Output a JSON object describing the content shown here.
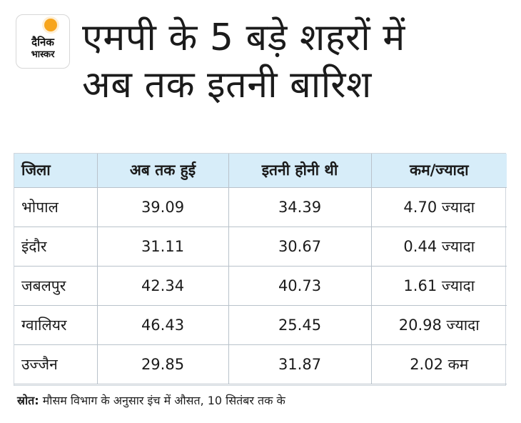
{
  "brand": {
    "line1": "दैनिक",
    "line2": "भास्कर"
  },
  "title": {
    "line1": "एमपी के 5 बड़े शहरों में",
    "line2": "अब तक इतनी बारिश"
  },
  "chart_data": {
    "type": "table",
    "title": "एमपी के 5 बड़े शहरों में अब तक इतनी बारिश",
    "columns": [
      "जिला",
      "अब तक हुई",
      "इतनी होनी थी",
      "कम/ज्यादा"
    ],
    "rows": [
      {
        "district": "भोपाल",
        "actual": "39.09",
        "expected": "34.39",
        "difference": "4.70 ज्यादा"
      },
      {
        "district": "इंदौर",
        "actual": "31.11",
        "expected": "30.67",
        "difference": "0.44 ज्यादा"
      },
      {
        "district": "जबलपुर",
        "actual": "42.34",
        "expected": "40.73",
        "difference": "1.61 ज्यादा"
      },
      {
        "district": "ग्वालियर",
        "actual": "46.43",
        "expected": "25.45",
        "difference": "20.98 ज्यादा"
      },
      {
        "district": "उज्जैन",
        "actual": "29.85",
        "expected": "31.87",
        "difference": "2.02 कम"
      }
    ]
  },
  "source": {
    "label": "स्रोत:",
    "text": " मौसम विभाग के अनुसार इंच में औसत, 10 सितंबर तक के"
  },
  "colors": {
    "header_background": "#d7edf9",
    "brand_orange": "#f7a51d",
    "grid_line": "#b9c2cb"
  }
}
